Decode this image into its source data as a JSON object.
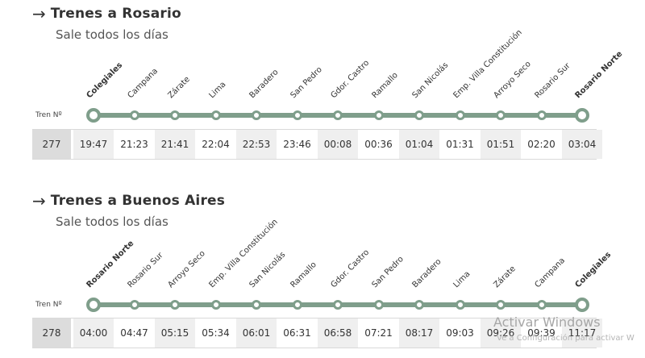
{
  "colors": {
    "line": "#7f9e8b",
    "alt_cell": "#efefef",
    "train_cell": "#dcdcdc"
  },
  "routes": [
    {
      "arrow": "→",
      "title": "Trenes a Rosario",
      "subtitle": "Sale todos los días",
      "train_label": "Tren Nº",
      "train_number": "277",
      "stations": [
        "Colegiales",
        "Campana",
        "Zárate",
        "Lima",
        "Baradero",
        "San Pedro",
        "Gdor. Castro",
        "Ramallo",
        "San Nicolás",
        "Emp. Villa Constitución",
        "Arroyo Seco",
        "Rosario Sur",
        "Rosario Norte"
      ],
      "times": [
        "19:47",
        "21:23",
        "21:41",
        "22:04",
        "22:53",
        "23:46",
        "00:08",
        "00:36",
        "01:04",
        "01:31",
        "01:51",
        "02:20",
        "03:04"
      ]
    },
    {
      "arrow": "→",
      "title": "Trenes a Buenos Aires",
      "subtitle": "Sale todos los días",
      "train_label": "Tren Nº",
      "train_number": "278",
      "stations": [
        "Rosario Norte",
        "Rosario Sur",
        "Arroyo Seco",
        "Emp. Villa Constitución",
        "San Nicolás",
        "Ramallo",
        "Gdor. Castro",
        "San Pedro",
        "Baradero",
        "Lima",
        "Zárate",
        "Campana",
        "Colegiales"
      ],
      "times": [
        "04:00",
        "04:47",
        "05:15",
        "05:34",
        "06:01",
        "06:31",
        "06:58",
        "07:21",
        "08:17",
        "09:03",
        "09:26",
        "09:39",
        "11:17"
      ]
    }
  ],
  "watermark": {
    "title": "Activar Windows",
    "subtitle": "Ve a Configuración para activar W"
  }
}
